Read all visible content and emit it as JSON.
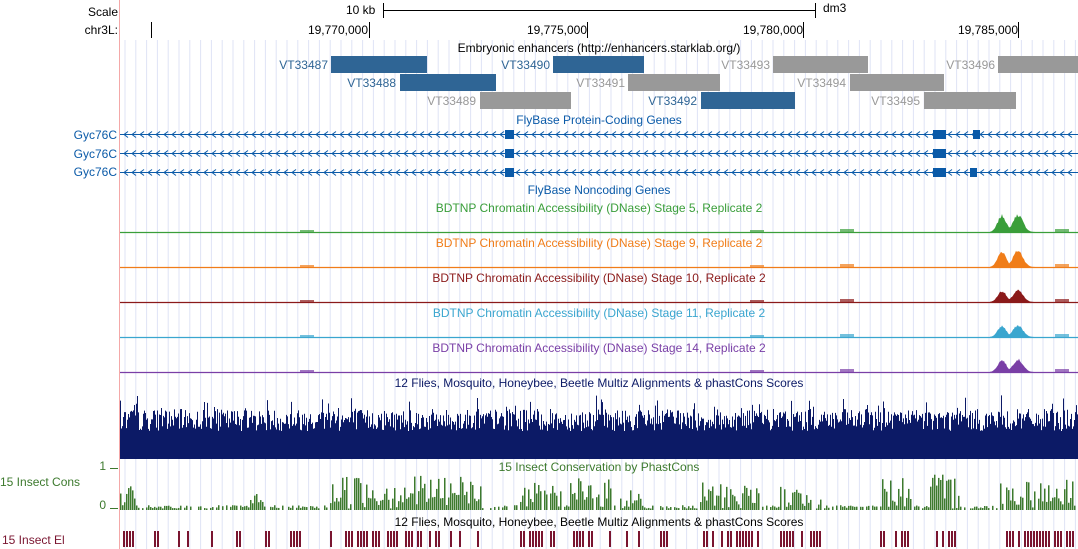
{
  "ruler": {
    "scale_label": "Scale",
    "chrom_label": "chr3L:",
    "scale_bar_text": "10 kb",
    "assembly": "dm3",
    "positions": [
      "19,770,000",
      "19,775,000",
      "19,780,000",
      "19,785,000"
    ]
  },
  "enhancers": {
    "title": "Embryonic enhancers (http://enhancers.starklab.org/)",
    "items": [
      {
        "name": "VT33487",
        "active": true
      },
      {
        "name": "VT33488",
        "active": true
      },
      {
        "name": "VT33489",
        "active": false
      },
      {
        "name": "VT33490",
        "active": true
      },
      {
        "name": "VT33491",
        "active": false
      },
      {
        "name": "VT33492",
        "active": true
      },
      {
        "name": "VT33493",
        "active": false
      },
      {
        "name": "VT33494",
        "active": false
      },
      {
        "name": "VT33495",
        "active": false
      },
      {
        "name": "VT33496",
        "active": false
      }
    ],
    "colors": {
      "active": "#2f6595",
      "inactive": "#999999"
    }
  },
  "genes": {
    "title": "FlyBase Protein-Coding Genes",
    "transcripts": [
      "Gyc76C",
      "Gyc76C",
      "Gyc76C"
    ],
    "color": "#0a5aa8"
  },
  "noncoding": {
    "title": "FlyBase Noncoding Genes"
  },
  "dnase": [
    {
      "title": "BDTNP Chromatin Accessibility (DNase) Stage 5, Replicate 2",
      "color": "#3a9e3a"
    },
    {
      "title": "BDTNP Chromatin Accessibility (DNase) Stage 9, Replicate 2",
      "color": "#f07d19"
    },
    {
      "title": "BDTNP Chromatin Accessibility (DNase) Stage 10, Replicate 2",
      "color": "#8b1a1a"
    },
    {
      "title": "BDTNP Chromatin Accessibility (DNase) Stage 11, Replicate 2",
      "color": "#3aa6cf"
    },
    {
      "title": "BDTNP Chromatin Accessibility (DNase) Stage 14, Replicate 2",
      "color": "#7a3fa6"
    }
  ],
  "multiz": {
    "title": "12 Flies, Mosquito, Honeybee, Beetle Multiz Alignments & phastCons Scores",
    "color": "#0c1a66"
  },
  "phastcons": {
    "title": "15 Insect Conservation by PhastCons",
    "side_label": "15 Insect Cons",
    "axis_max": "1",
    "axis_min": "0",
    "color": "#3d7a2e"
  },
  "elements": {
    "title": "12 Flies, Mosquito, Honeybee, Beetle Multiz Alignments & phastCons Scores",
    "side_label": "15 Insect El",
    "color": "#7a1530"
  }
}
